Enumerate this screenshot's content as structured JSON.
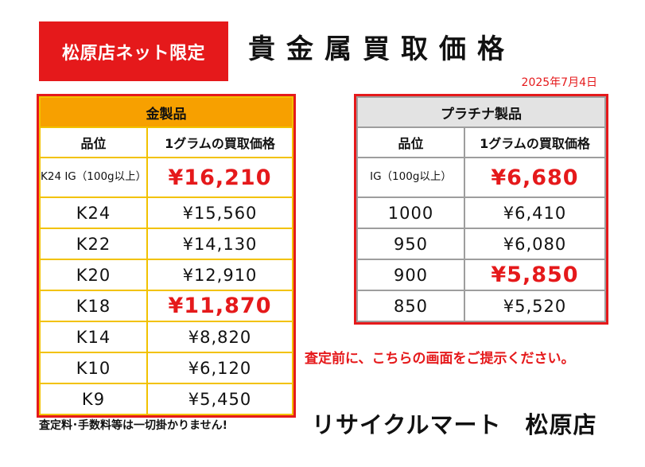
{
  "badge": "松原店ネット限定",
  "title": "貴金属買取価格",
  "date": "2025年7月4日",
  "gold_table": {
    "heading": "金製品",
    "col_grade": "品位",
    "col_price": "1グラムの買取価格",
    "rows": [
      {
        "grade": "K24 IG（100g以上）",
        "price": "¥16,210"
      },
      {
        "grade": "K24",
        "price": "¥15,560"
      },
      {
        "grade": "K22",
        "price": "¥14,130"
      },
      {
        "grade": "K20",
        "price": "¥12,910"
      },
      {
        "grade": "K18",
        "price": "¥11,870"
      },
      {
        "grade": "K14",
        "price": "¥8,820"
      },
      {
        "grade": "K10",
        "price": "¥6,120"
      },
      {
        "grade": "K9",
        "price": "¥5,450"
      }
    ]
  },
  "platinum_table": {
    "heading": "プラチナ製品",
    "col_grade": "品位",
    "col_price": "1グラムの買取価格",
    "rows": [
      {
        "grade": "IG（100g以上）",
        "price": "¥6,680"
      },
      {
        "grade": "1000",
        "price": "¥6,410"
      },
      {
        "grade": "950",
        "price": "¥6,080"
      },
      {
        "grade": "900",
        "price": "¥5,850"
      },
      {
        "grade": "850",
        "price": "¥5,520"
      }
    ]
  },
  "note": "査定前に、こちらの画面をご提示ください。",
  "footer_note": "査定料･手数料等は一切掛かりません!",
  "store_name": "リサイクルマート　松原店",
  "colors": {
    "accent_red": "#e5191b",
    "gold_header": "#f7a000",
    "gold_border": "#f2c200",
    "platinum_header": "#e3e3e3"
  }
}
